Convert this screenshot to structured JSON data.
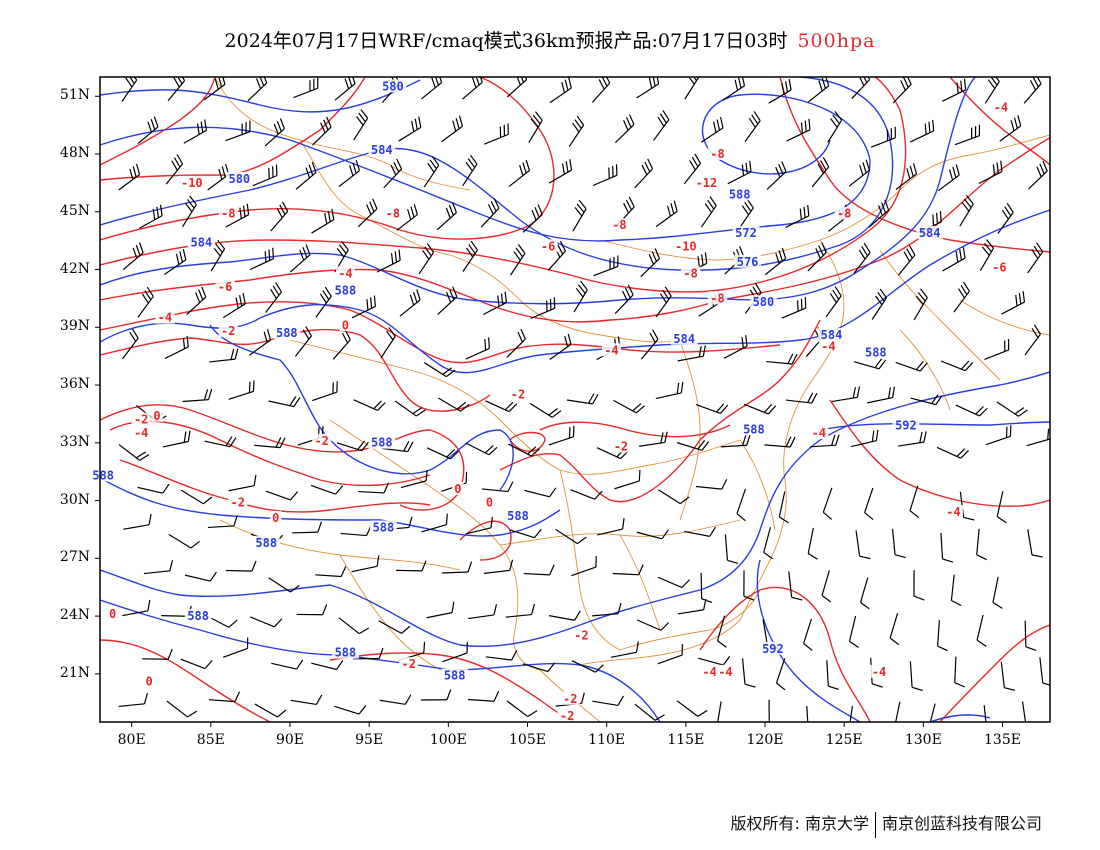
{
  "header": {
    "title": "2024年07月17日WRF/cmaq模式36km预报产品:07月17日03时",
    "level": "500hpa"
  },
  "axes": {
    "lat_labels": [
      "51N",
      "48N",
      "45N",
      "42N",
      "39N",
      "36N",
      "33N",
      "30N",
      "27N",
      "24N",
      "21N"
    ],
    "lat_values": [
      51,
      48,
      45,
      42,
      39,
      36,
      33,
      30,
      27,
      24,
      21
    ],
    "lon_labels": [
      "80E",
      "85E",
      "90E",
      "95E",
      "100E",
      "105E",
      "110E",
      "115E",
      "120E",
      "125E",
      "130E",
      "135E"
    ],
    "lon_values": [
      80,
      85,
      90,
      95,
      100,
      105,
      110,
      115,
      120,
      125,
      130,
      135
    ],
    "lon_range": [
      78,
      138
    ],
    "lat_range": [
      18.5,
      52
    ]
  },
  "map_data": {
    "geopotential_contours": {
      "color": "#2a3ee0",
      "labels": [
        {
          "text": "580",
          "lon": 96.5,
          "lat": 51.4
        },
        {
          "text": "584",
          "lon": 95.8,
          "lat": 48.1
        },
        {
          "text": "580",
          "lon": 86.8,
          "lat": 46.6
        },
        {
          "text": "584",
          "lon": 84.4,
          "lat": 43.3
        },
        {
          "text": "588",
          "lon": 93.5,
          "lat": 40.8
        },
        {
          "text": "588",
          "lon": 89.8,
          "lat": 38.6
        },
        {
          "text": "588",
          "lon": 95.8,
          "lat": 32.9
        },
        {
          "text": "588",
          "lon": 95.9,
          "lat": 28.5
        },
        {
          "text": "588",
          "lon": 88.5,
          "lat": 27.7
        },
        {
          "text": "588",
          "lon": 104.4,
          "lat": 29.1
        },
        {
          "text": "588",
          "lon": 84.2,
          "lat": 23.9
        },
        {
          "text": "588",
          "lon": 93.5,
          "lat": 22.0
        },
        {
          "text": "588",
          "lon": 100.4,
          "lat": 20.8
        },
        {
          "text": "588",
          "lon": 78.2,
          "lat": 31.2
        },
        {
          "text": "588",
          "lon": 118.4,
          "lat": 45.8
        },
        {
          "text": "572",
          "lon": 118.8,
          "lat": 43.8
        },
        {
          "text": "576",
          "lon": 118.9,
          "lat": 42.3
        },
        {
          "text": "580",
          "lon": 119.9,
          "lat": 40.2
        },
        {
          "text": "584",
          "lon": 114.9,
          "lat": 38.3
        },
        {
          "text": "584",
          "lon": 124.2,
          "lat": 38.5
        },
        {
          "text": "584",
          "lon": 130.4,
          "lat": 43.8
        },
        {
          "text": "588",
          "lon": 127.0,
          "lat": 37.6
        },
        {
          "text": "588",
          "lon": 119.3,
          "lat": 33.6
        },
        {
          "text": "592",
          "lon": 128.9,
          "lat": 33.8
        },
        {
          "text": "592",
          "lon": 120.5,
          "lat": 22.2
        }
      ]
    },
    "temperature_contours": {
      "color": "#e8282a",
      "labels": [
        {
          "text": "-10",
          "lon": 83.8,
          "lat": 46.4
        },
        {
          "text": "-8",
          "lon": 86.1,
          "lat": 44.8
        },
        {
          "text": "-8",
          "lon": 96.5,
          "lat": 44.8
        },
        {
          "text": "-6",
          "lon": 106.3,
          "lat": 43.1
        },
        {
          "text": "-8",
          "lon": 110.8,
          "lat": 44.2
        },
        {
          "text": "-4",
          "lon": 93.5,
          "lat": 41.7
        },
        {
          "text": "-6",
          "lon": 85.9,
          "lat": 41.0
        },
        {
          "text": "-4",
          "lon": 82.1,
          "lat": 39.4
        },
        {
          "text": "-2",
          "lon": 86.1,
          "lat": 38.7
        },
        {
          "text": "0",
          "lon": 93.5,
          "lat": 39.0
        },
        {
          "text": "-4",
          "lon": 110.3,
          "lat": 37.7
        },
        {
          "text": "-2",
          "lon": 104.4,
          "lat": 35.4
        },
        {
          "text": "-2",
          "lon": 80.6,
          "lat": 34.1
        },
        {
          "text": "0",
          "lon": 81.6,
          "lat": 34.3
        },
        {
          "text": "-4",
          "lon": 80.6,
          "lat": 33.4
        },
        {
          "text": "-2",
          "lon": 92.0,
          "lat": 33.0
        },
        {
          "text": "0",
          "lon": 100.6,
          "lat": 30.5
        },
        {
          "text": "-2",
          "lon": 86.7,
          "lat": 29.8
        },
        {
          "text": "0",
          "lon": 89.1,
          "lat": 29.0
        },
        {
          "text": "0",
          "lon": 102.6,
          "lat": 29.8
        },
        {
          "text": "-2",
          "lon": 110.9,
          "lat": 32.7
        },
        {
          "text": "-8",
          "lon": 117.0,
          "lat": 47.9
        },
        {
          "text": "-12",
          "lon": 116.3,
          "lat": 46.4
        },
        {
          "text": "-10",
          "lon": 115.0,
          "lat": 43.1
        },
        {
          "text": "-8",
          "lon": 115.3,
          "lat": 41.7
        },
        {
          "text": "-8",
          "lon": 117.0,
          "lat": 40.4
        },
        {
          "text": "-8",
          "lon": 125.0,
          "lat": 44.8
        },
        {
          "text": "-6",
          "lon": 134.8,
          "lat": 42.0
        },
        {
          "text": "-4",
          "lon": 134.9,
          "lat": 50.3
        },
        {
          "text": "-4",
          "lon": 124.0,
          "lat": 37.9
        },
        {
          "text": "-4",
          "lon": 123.4,
          "lat": 33.4
        },
        {
          "text": "-4",
          "lon": 131.9,
          "lat": 29.3
        },
        {
          "text": "-2",
          "lon": 108.4,
          "lat": 22.9
        },
        {
          "text": "-2",
          "lon": 97.5,
          "lat": 21.4
        },
        {
          "text": "0",
          "lon": 78.8,
          "lat": 24.0
        },
        {
          "text": "0",
          "lon": 81.1,
          "lat": 20.5
        },
        {
          "text": "-4",
          "lon": 116.5,
          "lat": 21.0
        },
        {
          "text": "-4",
          "lon": 117.5,
          "lat": 21.0
        },
        {
          "text": "-4",
          "lon": 127.2,
          "lat": 21.0
        },
        {
          "text": "-2",
          "lon": 107.7,
          "lat": 19.6
        },
        {
          "text": "-2",
          "lon": 107.5,
          "lat": 18.7
        }
      ]
    },
    "boundary_color": "#e0933a",
    "wind_barb_color": "#000000"
  },
  "footer": {
    "copyright_left": "版权所有: 南京大学",
    "copyright_right": "南京创蓝科技有限公司"
  }
}
